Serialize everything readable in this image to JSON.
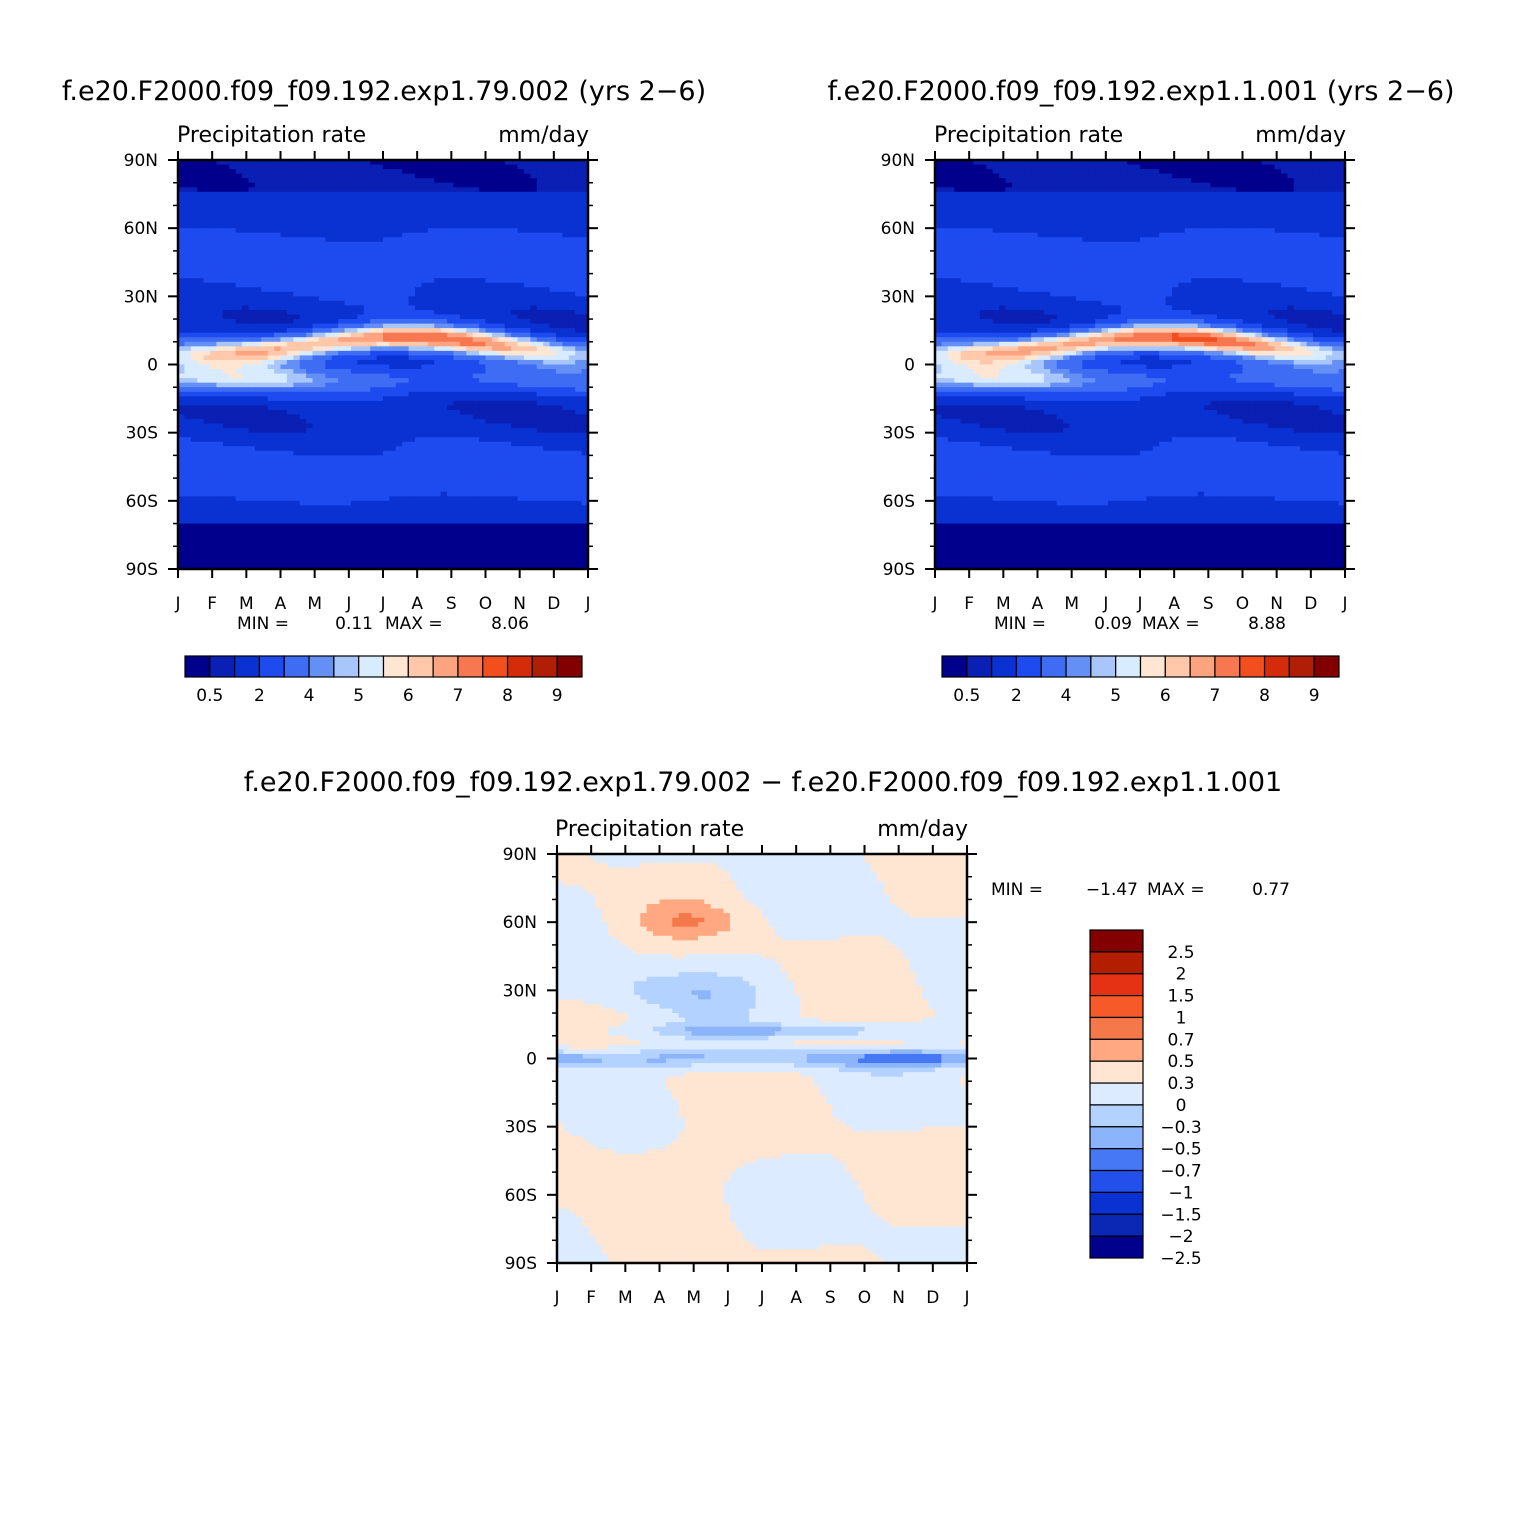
{
  "colors": {
    "top_palette": [
      "#00008C",
      "#0A1FB4",
      "#0A32D2",
      "#1E4BF0",
      "#3E6DF4",
      "#6490F5",
      "#A8C6FA",
      "#D8EBFF",
      "#FFE6D2",
      "#FFC8AA",
      "#FCA380",
      "#F77850",
      "#F24E1E",
      "#D42C0A",
      "#B01E05",
      "#820000"
    ],
    "diff_palette": [
      "#00008C",
      "#0A28B4",
      "#0A32D2",
      "#2350EB",
      "#4678F5",
      "#8CB4FA",
      "#B4D2FF",
      "#DCEBFF",
      "#FFE6D2",
      "#FFA882",
      "#F5784B",
      "#F55A28",
      "#E63214",
      "#B41E00",
      "#820000"
    ]
  },
  "panels": [
    {
      "title": "f.e20.F2000.f09_f09.192.exp1.79.002 (yrs 2−6)",
      "subtitle_left": "Precipitation rate",
      "subtitle_right": "mm/day",
      "min_label": "MIN =",
      "min_value": "0.11",
      "max_label": "MAX =",
      "max_value": "8.06",
      "colorbar_labels": [
        "0.5",
        "2",
        "4",
        "5",
        "6",
        "7",
        "8",
        "9"
      ]
    },
    {
      "title": "f.e20.F2000.f09_f09.192.exp1.1.001 (yrs 2−6)",
      "subtitle_left": "Precipitation rate",
      "subtitle_right": "mm/day",
      "min_label": "MIN =",
      "min_value": "0.09",
      "max_label": "MAX =",
      "max_value": "8.88",
      "colorbar_labels": [
        "0.5",
        "2",
        "4",
        "5",
        "6",
        "7",
        "8",
        "9"
      ]
    },
    {
      "title": "f.e20.F2000.f09_f09.192.exp1.79.002 − f.e20.F2000.f09_f09.192.exp1.1.001",
      "subtitle_left": "Precipitation rate",
      "subtitle_right": "mm/day",
      "min_label": "MIN =",
      "min_value": "−1.47",
      "max_label": "MAX =",
      "max_value": "0.77",
      "colorbar_labels": [
        "2.5",
        "2",
        "1.5",
        "1",
        "0.7",
        "0.5",
        "0.3",
        "0",
        "−0.3",
        "−0.5",
        "−0.7",
        "−1",
        "−1.5",
        "−2",
        "−2.5"
      ]
    }
  ],
  "chart_data": [
    {
      "type": "heatmap",
      "title": "f.e20.F2000.f09_f09.192.exp1.79.002 (yrs 2−6)",
      "x_tick_labels": [
        "J",
        "F",
        "M",
        "A",
        "M",
        "J",
        "J",
        "A",
        "S",
        "O",
        "N",
        "D",
        "J"
      ],
      "y_tick_labels": [
        "90N",
        "60N",
        "30N",
        "0",
        "30S",
        "60S",
        "90S"
      ],
      "ylim": [
        -90,
        90
      ],
      "contour_levels": [
        0.5,
        1,
        2,
        3,
        4,
        4.5,
        5,
        5.5,
        6,
        6.5,
        7,
        7.5,
        8,
        8.5,
        9
      ],
      "min": 0.11,
      "max": 8.06,
      "grid": false
    },
    {
      "type": "heatmap",
      "title": "f.e20.F2000.f09_f09.192.exp1.1.001 (yrs 2−6)",
      "x_tick_labels": [
        "J",
        "F",
        "M",
        "A",
        "M",
        "J",
        "J",
        "A",
        "S",
        "O",
        "N",
        "D",
        "J"
      ],
      "y_tick_labels": [
        "90N",
        "60N",
        "30N",
        "0",
        "30S",
        "60S",
        "90S"
      ],
      "ylim": [
        -90,
        90
      ],
      "contour_levels": [
        0.5,
        1,
        2,
        3,
        4,
        4.5,
        5,
        5.5,
        6,
        6.5,
        7,
        7.5,
        8,
        8.5,
        9
      ],
      "min": 0.09,
      "max": 8.88,
      "grid": false
    },
    {
      "type": "heatmap",
      "title": "f.e20.F2000.f09_f09.192.exp1.79.002 − f.e20.F2000.f09_f09.192.exp1.1.001",
      "x_tick_labels": [
        "J",
        "F",
        "M",
        "A",
        "M",
        "J",
        "J",
        "A",
        "S",
        "O",
        "N",
        "D",
        "J"
      ],
      "y_tick_labels": [
        "90N",
        "60N",
        "30N",
        "0",
        "30S",
        "60S",
        "90S"
      ],
      "ylim": [
        -90,
        90
      ],
      "contour_levels": [
        -2.5,
        -2,
        -1.5,
        -1,
        -0.7,
        -0.5,
        -0.3,
        0,
        0.3,
        0.5,
        0.7,
        1,
        1.5,
        2,
        2.5
      ],
      "min": -1.47,
      "max": 0.77,
      "legend_position": "right",
      "grid": false
    }
  ]
}
